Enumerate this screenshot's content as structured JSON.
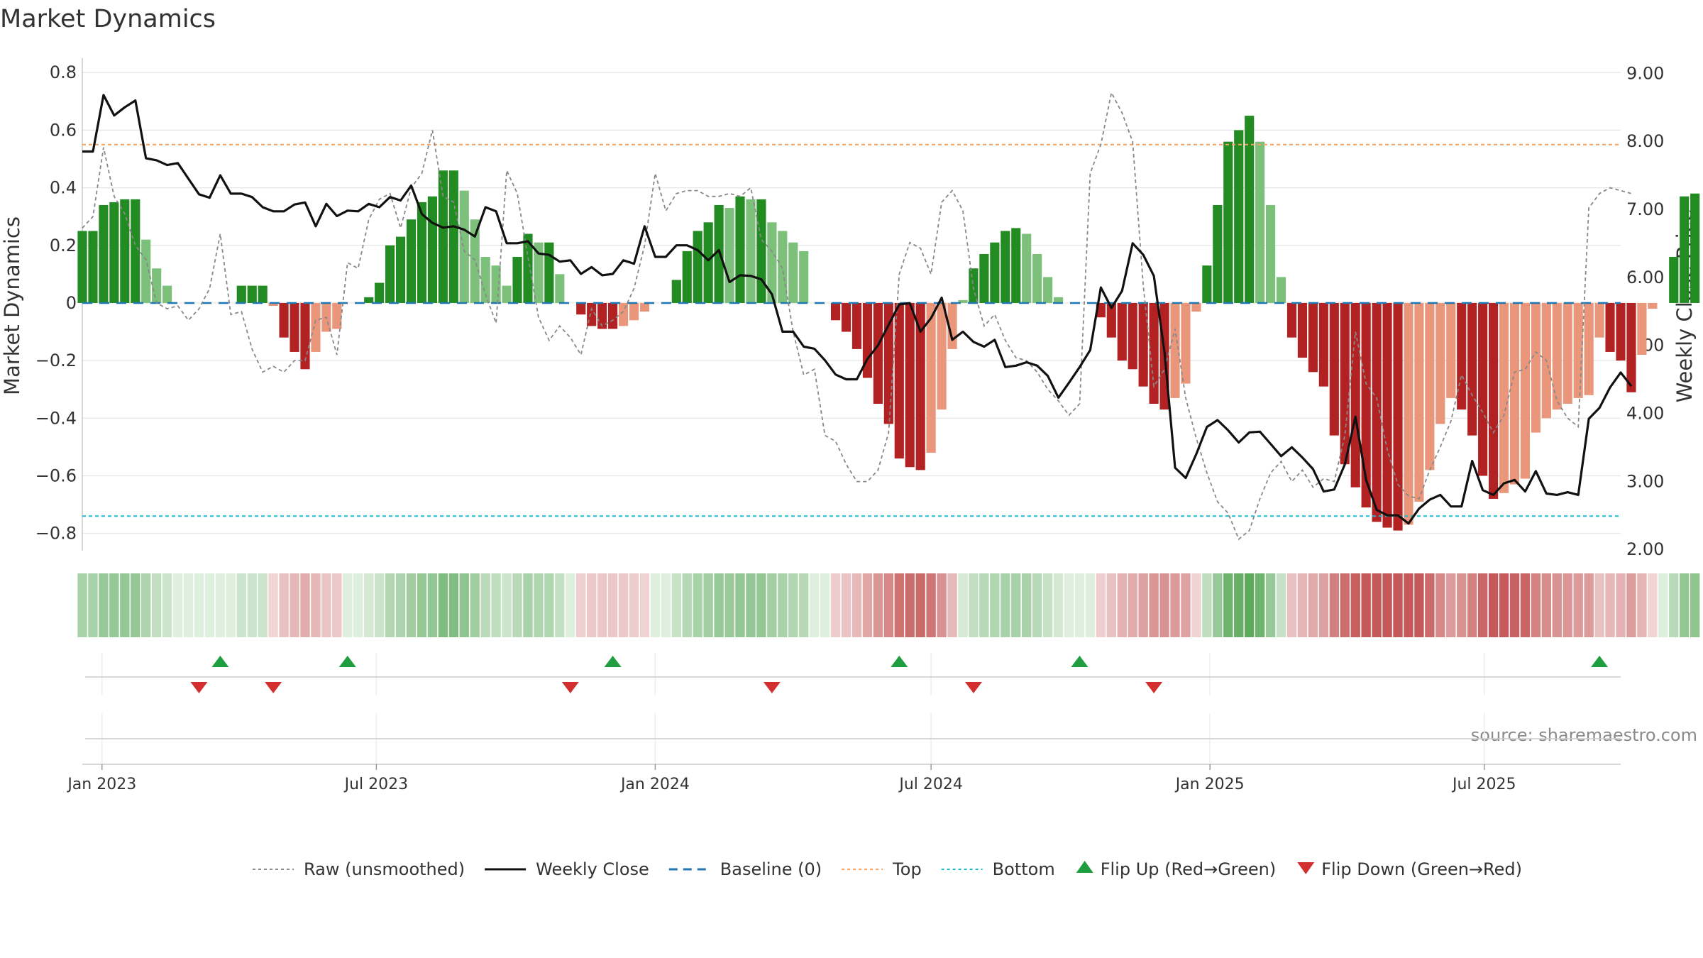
{
  "title": "Market Dynamics",
  "source": "source: sharemaestro.com",
  "chart_data": {
    "type": "bar",
    "left_axis_label": "Market Dynamics",
    "right_axis_label": "Weekly Close Price",
    "left_ylim": [
      -0.86,
      0.84
    ],
    "right_ylim": [
      1.98,
      9.18
    ],
    "left_ticks": [
      {
        "v": 0.8,
        "label": "0.8"
      },
      {
        "v": 0.6,
        "label": "0.6"
      },
      {
        "v": 0.4,
        "label": "0.4"
      },
      {
        "v": 0.2,
        "label": "0.2"
      },
      {
        "v": 0,
        "label": "0"
      },
      {
        "v": -0.2,
        "label": "−0.2"
      },
      {
        "v": -0.4,
        "label": "−0.4"
      },
      {
        "v": -0.6,
        "label": "−0.6"
      },
      {
        "v": -0.8,
        "label": "−0.8"
      }
    ],
    "right_ticks": [
      {
        "v": 9,
        "label": "9.00"
      },
      {
        "v": 8,
        "label": "8.00"
      },
      {
        "v": 7,
        "label": "7.00"
      },
      {
        "v": 6,
        "label": "6.00"
      },
      {
        "v": 5,
        "label": "5.00"
      },
      {
        "v": 4,
        "label": "4.00"
      },
      {
        "v": 3,
        "label": "3.00"
      },
      {
        "v": 2,
        "label": "2.00"
      }
    ],
    "x_start": "2022-12-19",
    "x_end": "2025-09-29",
    "x_ticks": [
      {
        "date": "2023-01-01",
        "label": "Jan 2023"
      },
      {
        "date": "2023-07-01",
        "label": "Jul 2023"
      },
      {
        "date": "2024-01-01",
        "label": "Jan 2024"
      },
      {
        "date": "2024-07-01",
        "label": "Jul 2024"
      },
      {
        "date": "2025-01-01",
        "label": "Jan 2025"
      },
      {
        "date": "2025-07-01",
        "label": "Jul 2025"
      }
    ],
    "first_week": "2022-12-19",
    "top_line": 0.55,
    "bottom_line": -0.74,
    "baseline": 0,
    "dynamics": [
      0.25,
      0.25,
      0.34,
      0.35,
      0.36,
      0.36,
      0.22,
      0.12,
      0.06,
      0,
      0,
      0,
      0,
      0,
      0,
      0.06,
      0.06,
      0.06,
      -0.01,
      -0.12,
      -0.17,
      -0.23,
      -0.17,
      -0.1,
      -0.09,
      0,
      0,
      0.02,
      0.07,
      0.2,
      0.23,
      0.29,
      0.35,
      0.37,
      0.46,
      0.46,
      0.39,
      0.29,
      0.16,
      0.13,
      0.06,
      0.16,
      0.24,
      0.21,
      0.21,
      0.1,
      0,
      -0.04,
      -0.08,
      -0.09,
      -0.09,
      -0.08,
      -0.06,
      -0.03,
      0,
      0,
      0.08,
      0.18,
      0.25,
      0.28,
      0.34,
      0.33,
      0.37,
      0.36,
      0.36,
      0.28,
      0.25,
      0.21,
      0.18,
      0,
      0,
      -0.06,
      -0.1,
      -0.16,
      -0.26,
      -0.35,
      -0.42,
      -0.54,
      -0.57,
      -0.58,
      -0.52,
      -0.37,
      -0.16,
      0.01,
      0.12,
      0.17,
      0.21,
      0.25,
      0.26,
      0.24,
      0.17,
      0.09,
      0.02,
      0,
      0,
      0,
      -0.05,
      -0.12,
      -0.2,
      -0.23,
      -0.29,
      -0.35,
      -0.37,
      -0.33,
      -0.28,
      -0.03,
      0.13,
      0.34,
      0.56,
      0.6,
      0.65,
      0.56,
      0.34,
      0.09,
      -0.12,
      -0.19,
      -0.24,
      -0.29,
      -0.46,
      -0.56,
      -0.64,
      -0.71,
      -0.76,
      -0.78,
      -0.79,
      -0.77,
      -0.69,
      -0.58,
      -0.42,
      -0.33,
      -0.37,
      -0.46,
      -0.6,
      -0.68,
      -0.66,
      -0.63,
      -0.61,
      -0.45,
      -0.4,
      -0.37,
      -0.35,
      -0.33,
      -0.32,
      -0.12,
      -0.17,
      -0.2,
      -0.31,
      -0.18,
      -0.02,
      0,
      0.16,
      0.37,
      0.38
    ],
    "raw": [
      0.26,
      0.3,
      0.54,
      0.37,
      0.31,
      0.2,
      0.15,
      0,
      -0.02,
      -0.01,
      -0.06,
      -0.02,
      0.05,
      0.24,
      -0.04,
      -0.03,
      -0.16,
      -0.24,
      -0.22,
      -0.24,
      -0.2,
      -0.2,
      -0.06,
      -0.05,
      -0.18,
      0.14,
      0.12,
      0.29,
      0.36,
      0.38,
      0.26,
      0.4,
      0.45,
      0.6,
      0.37,
      0.35,
      0.18,
      0.15,
      0.03,
      -0.07,
      0.46,
      0.38,
      0.16,
      -0.05,
      -0.13,
      -0.08,
      -0.12,
      -0.18,
      -0.02,
      -0.08,
      -0.06,
      -0.03,
      0.05,
      0.2,
      0.45,
      0.32,
      0.38,
      0.39,
      0.39,
      0.37,
      0.37,
      0.38,
      0.37,
      0.4,
      0.22,
      0.18,
      0.12,
      -0.1,
      -0.25,
      -0.23,
      -0.46,
      -0.48,
      -0.56,
      -0.62,
      -0.62,
      -0.58,
      -0.45,
      0.1,
      0.21,
      0.19,
      0.1,
      0.35,
      0.39,
      0.32,
      0.05,
      -0.08,
      -0.04,
      -0.13,
      -0.19,
      -0.2,
      -0.24,
      -0.3,
      -0.34,
      -0.39,
      -0.35,
      0.45,
      0.55,
      0.73,
      0.66,
      0.56,
      0.06,
      -0.29,
      -0.23,
      -0.09,
      -0.33,
      -0.47,
      -0.59,
      -0.69,
      -0.73,
      -0.82,
      -0.79,
      -0.68,
      -0.59,
      -0.55,
      -0.62,
      -0.58,
      -0.64,
      -0.61,
      -0.62,
      -0.46,
      -0.1,
      -0.28,
      -0.33,
      -0.51,
      -0.63,
      -0.67,
      -0.68,
      -0.58,
      -0.5,
      -0.41,
      -0.25,
      -0.32,
      -0.38,
      -0.45,
      -0.39,
      -0.24,
      -0.23,
      -0.17,
      -0.2,
      -0.34,
      -0.4,
      -0.43,
      0.33,
      0.38,
      0.4,
      0.39,
      0.38
    ],
    "price": [
      7.85,
      7.85,
      8.68,
      8.38,
      8.5,
      8.6,
      7.75,
      7.72,
      7.65,
      7.68,
      7.45,
      7.22,
      7.17,
      7.5,
      7.23,
      7.23,
      7.18,
      7.03,
      6.97,
      6.97,
      7.07,
      7.1,
      6.75,
      7.08,
      6.9,
      6.98,
      6.97,
      7.08,
      7.03,
      7.18,
      7.13,
      7.35,
      6.93,
      6.8,
      6.73,
      6.75,
      6.7,
      6.6,
      7.03,
      6.97,
      6.5,
      6.5,
      6.53,
      6.35,
      6.33,
      6.23,
      6.25,
      6.05,
      6.15,
      6.03,
      6.05,
      6.25,
      6.2,
      6.75,
      6.3,
      6.3,
      6.47,
      6.47,
      6.4,
      6.25,
      6.4,
      5.93,
      6.03,
      6.02,
      5.97,
      5.75,
      5.2,
      5.2,
      4.98,
      4.95,
      4.78,
      4.57,
      4.5,
      4.5,
      4.8,
      5.0,
      5.3,
      5.6,
      5.62,
      5.2,
      5.4,
      5.7,
      5.08,
      5.2,
      5.05,
      4.98,
      5.08,
      4.68,
      4.7,
      4.75,
      4.7,
      4.55,
      4.23,
      4.45,
      4.68,
      4.93,
      5.85,
      5.55,
      5.8,
      6.5,
      6.33,
      6.02,
      4.9,
      3.2,
      3.05,
      3.4,
      3.8,
      3.9,
      3.75,
      3.57,
      3.72,
      3.73,
      3.55,
      3.37,
      3.5,
      3.35,
      3.18,
      2.85,
      2.88,
      3.25,
      3.95,
      3.02,
      2.58,
      2.5,
      2.5,
      2.38,
      2.6,
      2.73,
      2.8,
      2.63,
      2.63,
      3.3,
      2.87,
      2.8,
      2.97,
      3.02,
      2.85,
      3.15,
      2.82,
      2.8,
      2.84,
      2.8,
      3.92,
      4.08,
      4.38,
      4.6,
      4.4
    ],
    "flip_up_dates": [
      "2023-03-20",
      "2023-06-12",
      "2023-12-04",
      "2024-06-10",
      "2024-10-07",
      "2025-09-15"
    ],
    "flip_down_dates": [
      "2023-03-06",
      "2023-04-24",
      "2023-11-06",
      "2024-03-18",
      "2024-07-29",
      "2024-11-25"
    ],
    "colors": {
      "strong_green": "#228B22",
      "light_green": "#7CC07C",
      "strong_red": "#B22222",
      "light_red": "#E9967A",
      "price_line": "#111111",
      "raw_line": "#888888",
      "baseline": "#1F77B4",
      "top": "#F4A261",
      "bottom": "#17BECF",
      "flip_up": "#1E9E3E",
      "flip_down": "#D32F2F",
      "grid": "#E6E6E6"
    },
    "legend": [
      {
        "key": "raw",
        "label": "Raw (unsmoothed)"
      },
      {
        "key": "price",
        "label": "Weekly Close"
      },
      {
        "key": "baseline",
        "label": "Baseline (0)"
      },
      {
        "key": "top",
        "label": "Top"
      },
      {
        "key": "bottom",
        "label": "Bottom"
      },
      {
        "key": "up",
        "label": "Flip Up (Red→Green)"
      },
      {
        "key": "down",
        "label": "Flip Down (Green→Red)"
      }
    ]
  }
}
